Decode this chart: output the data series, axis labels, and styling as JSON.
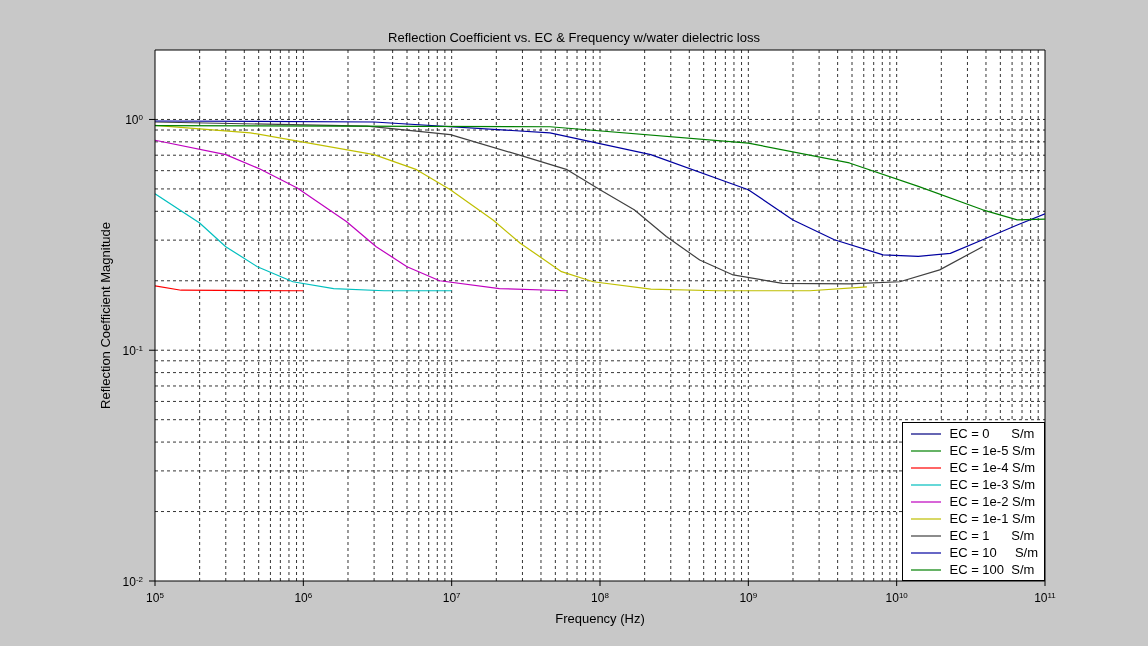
{
  "chart_data": {
    "type": "line",
    "title": "Reflection Coefficient vs. EC & Frequency w/water dielectric loss",
    "xlabel": "Frequency (Hz)",
    "ylabel": "Reflection Coefficient Magnitude",
    "log": "xy",
    "grid": true,
    "legend": "bottom right",
    "line_style": "solid",
    "marker": "none",
    "xlim": [
      100000,
      100000000000
    ],
    "ylim": [
      0.01,
      2
    ],
    "xticks": [
      {
        "value": 100000,
        "label": "10$^{5}$"
      },
      {
        "value": 1000000,
        "label": "10$^{6}$"
      },
      {
        "value": 10000000,
        "label": "10$^{7}$"
      },
      {
        "value": 100000000,
        "label": "10$^{8}$"
      },
      {
        "value": 1000000000,
        "label": "10$^{9}$"
      },
      {
        "value": 10000000000,
        "label": "10$^{10}$"
      },
      {
        "value": 100000000000,
        "label": "10$^{11}$"
      }
    ],
    "yticks": [
      {
        "value": 0.01,
        "label": "10$^{-2}$"
      },
      {
        "value": 0.1,
        "label": "10$^{-1}$"
      },
      {
        "value": 1,
        "label": "10$^{0}$"
      }
    ],
    "series": [
      {
        "name": "EC = 0      S/m",
        "color": "#000080"
      },
      {
        "name": "EC = 1e-5 S/m",
        "color": "#008000"
      },
      {
        "name": "EC = 1e-4 S/m",
        "color": "#ff0000",
        "x": [
          100000.0,
          150000.0,
          1000000.0
        ],
        "values": [
          0.19,
          0.182,
          0.181
        ]
      },
      {
        "name": "EC = 1e-3 S/m",
        "color": "#00bfbf",
        "x": [
          100000.0,
          200000.0,
          300000.0,
          490000.0,
          850000.0,
          1600000.0,
          3500000.0,
          10000000.0
        ],
        "values": [
          0.476,
          0.356,
          0.281,
          0.23,
          0.198,
          0.185,
          0.181,
          0.181
        ]
      },
      {
        "name": "EC = 1e-2 S/m",
        "color": "#bf00bf",
        "x": [
          100000.0,
          300000.0,
          510000.0,
          910000.0,
          1950000.0,
          3100000.0,
          5000000.0,
          8300000.0,
          21000000.0,
          60000000.0
        ],
        "values": [
          0.813,
          0.704,
          0.61,
          0.505,
          0.361,
          0.281,
          0.23,
          0.2,
          0.185,
          0.181
        ]
      },
      {
        "name": "EC = 1e-1 S/m",
        "color": "#bfbf00",
        "x": [
          100000.0,
          440000.0,
          3000000.0,
          5800000.0,
          9800000.0,
          19000000.0,
          29000000.0,
          55000000.0,
          90000000.0,
          220000000.0,
          620000000.0,
          2600000000.0,
          6300000000.0
        ],
        "values": [
          0.942,
          0.875,
          0.704,
          0.606,
          0.496,
          0.367,
          0.291,
          0.219,
          0.198,
          0.184,
          0.181,
          0.181,
          0.188
        ]
      },
      {
        "name": "EC = 1      S/m",
        "color": "#404040",
        "x": [
          100000.0,
          2700000.0,
          9800000.0,
          28000000.0,
          60000000.0,
          100000000.0,
          170000000.0,
          280000000.0,
          470000000.0,
          790000000.0,
          1700000000.0,
          4800000000.0,
          10500000000.0,
          19500000000.0,
          38000000000.0
        ],
        "values": [
          0.975,
          0.935,
          0.86,
          0.704,
          0.606,
          0.496,
          0.406,
          0.311,
          0.246,
          0.212,
          0.195,
          0.194,
          0.198,
          0.223,
          0.281
        ]
      },
      {
        "name": "EC = 10     S/m",
        "color": "#0000a0",
        "x": [
          100000.0,
          3000000.0,
          46000000.0,
          220000000.0,
          1000000000.0,
          2000000000.0,
          3800000000.0,
          8100000000.0,
          14000000000.0,
          23000000000.0,
          38000000000.0,
          65000000000.0,
          100000000000.0
        ],
        "values": [
          0.985,
          0.975,
          0.875,
          0.704,
          0.496,
          0.367,
          0.301,
          0.259,
          0.255,
          0.263,
          0.301,
          0.349,
          0.39
        ]
      },
      {
        "name": "EC = 100  S/m",
        "color": "#008000",
        "x": [
          100000.0,
          46000000.0,
          1000000000.0,
          4800000000.0,
          14000000000.0,
          38000000000.0,
          65000000000.0,
          100000000000.0
        ],
        "values": [
          0.94,
          0.93,
          0.79,
          0.648,
          0.513,
          0.406,
          0.367,
          0.37
        ]
      }
    ]
  }
}
